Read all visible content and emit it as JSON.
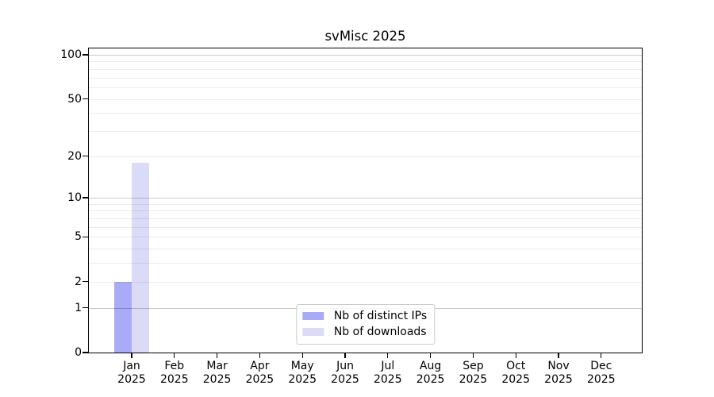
{
  "chart_data": {
    "type": "bar",
    "title": "svMisc 2025",
    "xlabel": "",
    "ylabel": "",
    "yscale": "log1p",
    "ylim": [
      0,
      112
    ],
    "grid": true,
    "legend_position": "bottom-center",
    "months": [
      "Jan",
      "Feb",
      "Mar",
      "Apr",
      "May",
      "Jun",
      "Jul",
      "Aug",
      "Sep",
      "Oct",
      "Nov",
      "Dec"
    ],
    "year": "2025",
    "y_tick_labels": [
      "0",
      "1",
      "2",
      "5",
      "10",
      "20",
      "50",
      "100"
    ],
    "y_major_gridlines": [
      1,
      10,
      100
    ],
    "y_minor_gridlines": [
      2,
      3,
      4,
      5,
      6,
      7,
      8,
      9,
      20,
      30,
      40,
      50,
      60,
      70,
      80,
      90
    ],
    "series": [
      {
        "name": "Nb of distinct IPs",
        "color": "#a9abf7",
        "values": [
          2,
          0,
          0,
          0,
          0,
          0,
          0,
          0,
          0,
          0,
          0,
          0
        ]
      },
      {
        "name": "Nb of downloads",
        "color": "#dbdbf8",
        "values": [
          18,
          0,
          0,
          0,
          0,
          0,
          0,
          0,
          0,
          0,
          0,
          0
        ]
      }
    ],
    "colors": {
      "axis": "#000000",
      "grid_minor": "#ebebeb",
      "grid_major": "#c9c9c9",
      "legend_border": "#cccccc",
      "background": "#ffffff"
    }
  }
}
